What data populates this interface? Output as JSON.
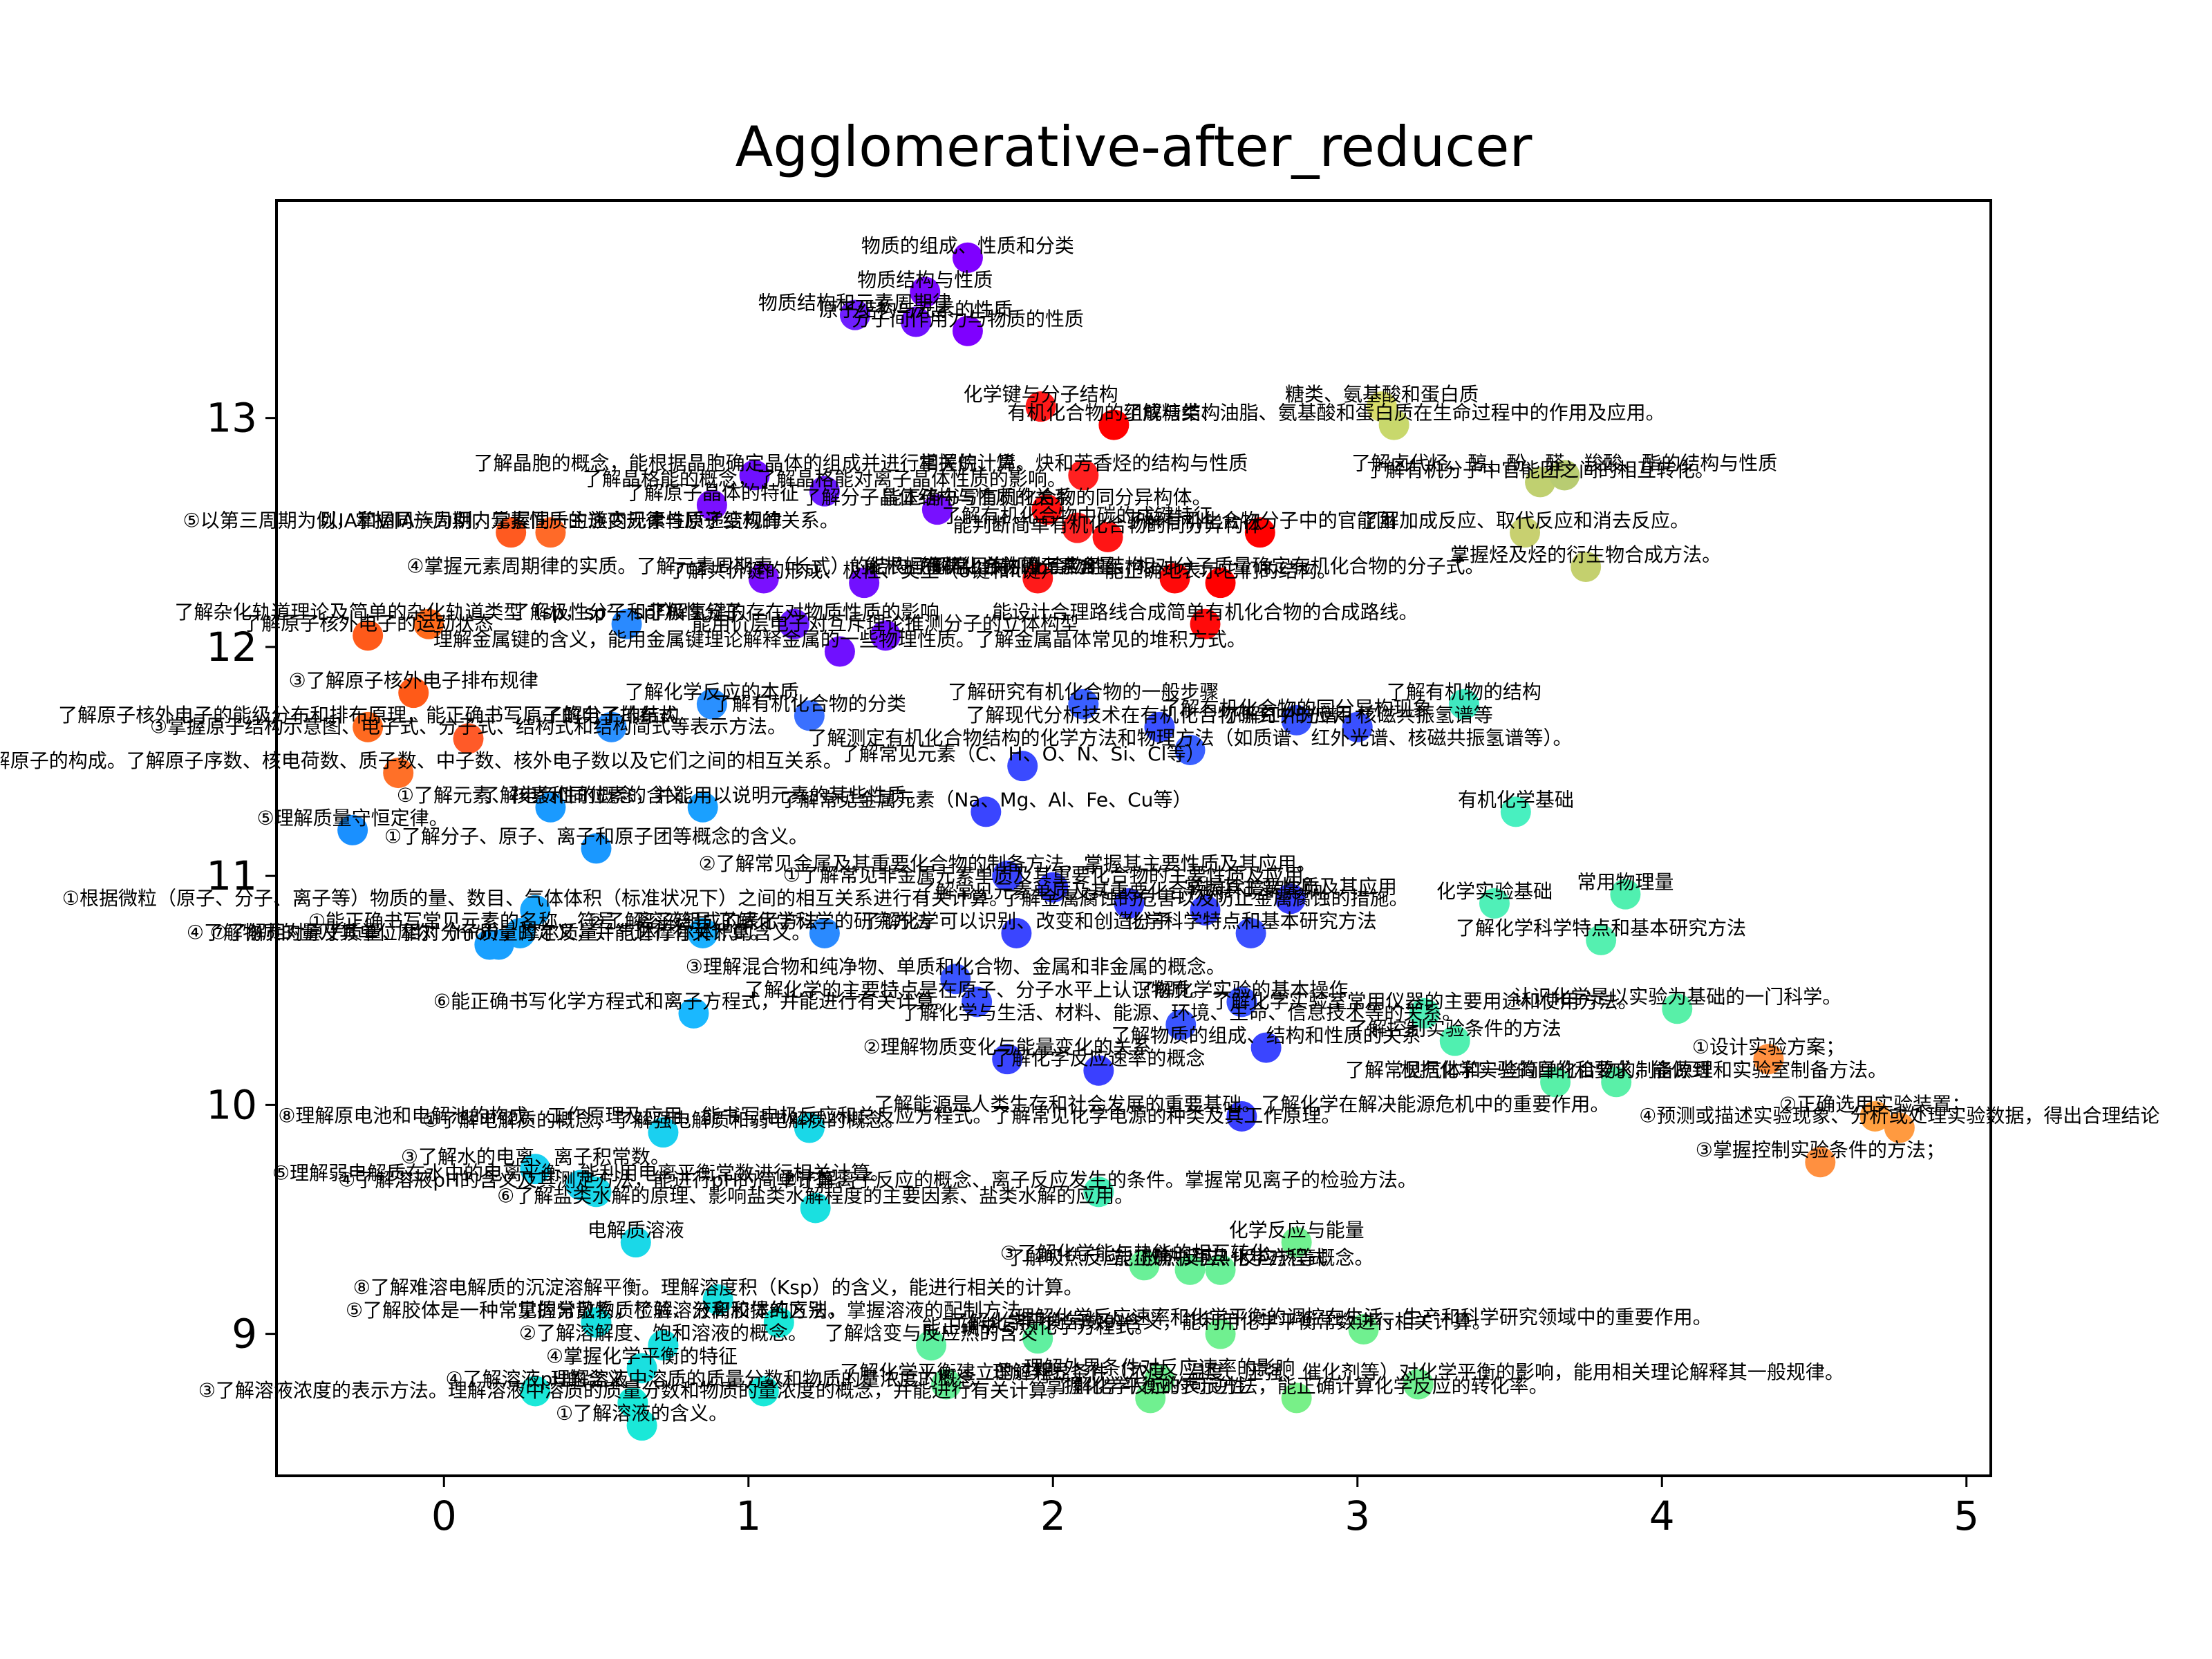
{
  "chart_data": {
    "type": "scatter",
    "title": "Agglomerative-after_reducer",
    "xlabel": "",
    "ylabel": "",
    "xlim": [
      -0.55,
      5.08
    ],
    "ylim": [
      8.38,
      13.95
    ],
    "xticks": [
      0,
      1,
      2,
      3,
      4,
      5
    ],
    "yticks": [
      9,
      10,
      11,
      12,
      13
    ],
    "grid": false,
    "legend": "none",
    "points": [
      {
        "x": 1.72,
        "y": 13.7,
        "color": "#7f00ff",
        "label": "物质的组成、性质和分类"
      },
      {
        "x": 1.58,
        "y": 13.55,
        "color": "#7b08ff",
        "label": "物质结构与性质"
      },
      {
        "x": 1.35,
        "y": 13.45,
        "color": "#6f1fff",
        "label": "物质结构和元素周期律"
      },
      {
        "x": 1.55,
        "y": 13.42,
        "color": "#7010ff",
        "label": "原子结构与元素的性质"
      },
      {
        "x": 1.72,
        "y": 13.38,
        "color": "#7f00ff",
        "label": "分子间作用力与物质的性质"
      },
      {
        "x": 1.96,
        "y": 13.05,
        "color": "#ff1a1a",
        "label": "化学键与分子结构"
      },
      {
        "x": 2.2,
        "y": 12.97,
        "color": "#ff0000",
        "label": "有机化合物的组成与结构"
      },
      {
        "x": 3.08,
        "y": 13.05,
        "color": "#d8dc6a",
        "label": "糖类、氨基酸和蛋白质"
      },
      {
        "x": 3.12,
        "y": 12.97,
        "color": "#c8d86c",
        "label": "了解糖类、油脂、氨基酸和蛋白质在生命过程中的作用及应用。"
      },
      {
        "x": 1.02,
        "y": 12.75,
        "color": "#7010ff",
        "label": "了解晶胞的概念，能根据晶胞确定晶体的组成并进行相关的计算。"
      },
      {
        "x": 2.1,
        "y": 12.75,
        "color": "#ff2020",
        "label": "掌握烷、烯、炔和芳香烃的结构与性质"
      },
      {
        "x": 3.6,
        "y": 12.72,
        "color": "#c0d070",
        "label": "了解有机分子中官能团之间的相互转化。"
      },
      {
        "x": 3.68,
        "y": 12.75,
        "color": "#b8cc72",
        "label": "了解卤代烃、醇、酚、醛、羧酸、酯的结构与性质"
      },
      {
        "x": 1.25,
        "y": 12.68,
        "color": "#6a1aff",
        "label": "了解晶格能的概念，了解晶格能对离子晶体性质的影响。"
      },
      {
        "x": 0.88,
        "y": 12.62,
        "color": "#7a10ff",
        "label": "了解原子晶体的特征"
      },
      {
        "x": 1.62,
        "y": 12.6,
        "color": "#7810ff",
        "label": "了解分子晶体结构与性质的关系"
      },
      {
        "x": 1.98,
        "y": 12.6,
        "color": "#ff1010",
        "label": "能正确书写有机化合物的同分异构体。"
      },
      {
        "x": 2.08,
        "y": 12.52,
        "color": "#ff2525",
        "label": "了解有机化合物中碳的成键特征"
      },
      {
        "x": 2.18,
        "y": 12.48,
        "color": "#ff1515",
        "label": "能判断简单有机化合物的同分异构体"
      },
      {
        "x": 2.68,
        "y": 12.5,
        "color": "#ff0000",
        "label": "了解有机化合物分子中的官能团"
      },
      {
        "x": 3.55,
        "y": 12.5,
        "color": "#c8d070",
        "label": "了解加成反应、取代反应和消去反应。"
      },
      {
        "x": 3.75,
        "y": 12.35,
        "color": "#c4d06e",
        "label": "掌握烃及烃的衍生物合成方法。"
      },
      {
        "x": 0.22,
        "y": 12.5,
        "color": "#ff5a20",
        "label": "⑤以第三周期为例，掌握同一周期内元素性质的递变规律与原子结构的关系。"
      },
      {
        "x": 0.35,
        "y": 12.5,
        "color": "#ff6a28",
        "label": "以IA和VIIA族为例，掌握同一主族内元素性质递变规律"
      },
      {
        "x": 1.05,
        "y": 12.3,
        "color": "#7a10ff",
        "label": "④掌握元素周期律的实质。了解元素周期表（长式）的结构（周期、族）及其应用。"
      },
      {
        "x": 1.38,
        "y": 12.28,
        "color": "#7210ff",
        "label": "了解共价键的形成、极性、类型（σ键和π键）"
      },
      {
        "x": 1.95,
        "y": 12.3,
        "color": "#ff1a1a",
        "label": "了解常见有机化合物的结构。"
      },
      {
        "x": 2.4,
        "y": 12.3,
        "color": "#ff0a0a",
        "label": "能根据有机化合物的元素含量、相对分子质量确定有机化合物的分子式。"
      },
      {
        "x": 2.55,
        "y": 12.28,
        "color": "#ff0000",
        "label": "能正确地表示它们的结构。"
      },
      {
        "x": -0.25,
        "y": 12.05,
        "color": "#ff5a1a",
        "label": "了解原子核外电子的运动状态"
      },
      {
        "x": -0.05,
        "y": 12.1,
        "color": "#ff6a1a",
        "label": "了解杂化轨道理论及简单的杂化轨道类型（sp，sp²，sp³）"
      },
      {
        "x": 0.6,
        "y": 12.1,
        "color": "#2a8aff",
        "label": "了解极性分子和非极性分子"
      },
      {
        "x": 1.15,
        "y": 12.1,
        "color": "#6a1aff",
        "label": "了解氢键的存在对物质性质的影响"
      },
      {
        "x": 1.45,
        "y": 12.05,
        "color": "#7010ff",
        "label": "能用价层电子对互斥理论推测分子的立体构型"
      },
      {
        "x": 2.5,
        "y": 12.1,
        "color": "#ff0a0a",
        "label": "能设计合理路线合成简单有机化合物的合成路线。"
      },
      {
        "x": 1.3,
        "y": 11.98,
        "color": "#7010ff",
        "label": "理解金属键的含义，能用金属键理论解释金属的一些物理性质。了解金属晶体常见的堆积方式。"
      },
      {
        "x": -0.1,
        "y": 11.8,
        "color": "#ff5a18",
        "label": "③了解原子核外电子排布规律"
      },
      {
        "x": -0.25,
        "y": 11.65,
        "color": "#ff6a20",
        "label": "了解原子核外电子的能级分布和排布原理，能正确书写原子的电子排布式"
      },
      {
        "x": 0.08,
        "y": 11.6,
        "color": "#ff5a28",
        "label": "③掌握原子结构示意图、电子式、分子式、结构式和结构简式等表示方法。"
      },
      {
        "x": 0.55,
        "y": 11.65,
        "color": "#2a90ff",
        "label": "了解分子的结构"
      },
      {
        "x": 0.88,
        "y": 11.75,
        "color": "#2a90ff",
        "label": "了解化学反应的本质"
      },
      {
        "x": 1.2,
        "y": 11.7,
        "color": "#3a70ff",
        "label": "了解有机化合物的分类"
      },
      {
        "x": 2.1,
        "y": 11.75,
        "color": "#3a60ff",
        "label": "了解研究有机化合物的一般步骤"
      },
      {
        "x": 2.35,
        "y": 11.65,
        "color": "#3a50ff",
        "label": "了解现代分析技术在有机化合物研究中的应用"
      },
      {
        "x": 2.8,
        "y": 11.68,
        "color": "#3a55ff",
        "label": "了解有机化合物的同分异构现象"
      },
      {
        "x": 3.0,
        "y": 11.65,
        "color": "#3a50ff",
        "label": "了解红外光谱、核磁共振氢谱等"
      },
      {
        "x": 3.35,
        "y": 11.75,
        "color": "#40e8c0",
        "label": "了解有机物的结构"
      },
      {
        "x": 2.45,
        "y": 11.55,
        "color": "#3a60ff",
        "label": "了解测定有机化合物结构的化学方法和物理方法（如质谱、红外光谱、核磁共振氢谱等）。"
      },
      {
        "x": -0.15,
        "y": 11.45,
        "color": "#ff7028",
        "label": "①了解原子的构成。了解原子序数、核电荷数、质子数、中子数、核外电子数以及它们之间的相互关系。"
      },
      {
        "x": 0.35,
        "y": 11.3,
        "color": "#1a9aff",
        "label": "①了解元素、核素和同位素的含义。"
      },
      {
        "x": 0.85,
        "y": 11.3,
        "color": "#1aa0ff",
        "label": "了解电负性的概念，并能用以说明元素的某些性质。"
      },
      {
        "x": 1.9,
        "y": 11.48,
        "color": "#3a4aff",
        "label": "了解常见元素（C、H、O、N、Si、Cl等）"
      },
      {
        "x": 1.78,
        "y": 11.28,
        "color": "#3a45ff",
        "label": "了解常见金属元素（Na、Mg、Al、Fe、Cu等）"
      },
      {
        "x": 3.52,
        "y": 11.28,
        "color": "#48f0c0",
        "label": "有机化学基础"
      },
      {
        "x": -0.3,
        "y": 11.2,
        "color": "#1a90ff",
        "label": "⑤理解质量守恒定律。"
      },
      {
        "x": 0.5,
        "y": 11.12,
        "color": "#1a98ff",
        "label": "①了解分子、原子、离子和原子团等概念的含义。"
      },
      {
        "x": 1.85,
        "y": 11.0,
        "color": "#3a45ff",
        "label": "②了解常见金属及其重要化合物的制备方法，掌握其主要性质及其应用。"
      },
      {
        "x": 2.0,
        "y": 10.95,
        "color": "#3a40ff",
        "label": "①了解常见非金属元素单质及其重要化合物的主要性质及应用。"
      },
      {
        "x": 2.25,
        "y": 10.88,
        "color": "#3a40ff",
        "label": "了解常见元素单质及其重要化合物对环境的影响。"
      },
      {
        "x": 2.5,
        "y": 10.85,
        "color": "#3a45ff",
        "label": "了解金属腐蚀的危害以及防止金属腐蚀的措施。"
      },
      {
        "x": 2.78,
        "y": 10.9,
        "color": "#3a40ff",
        "label": "掌握其主要性质及其应用"
      },
      {
        "x": 3.45,
        "y": 10.88,
        "color": "#50f0b8",
        "label": "化学实验基础"
      },
      {
        "x": 3.88,
        "y": 10.92,
        "color": "#50f0b0",
        "label": "常用物理量"
      },
      {
        "x": 0.3,
        "y": 10.85,
        "color": "#1aa8ff",
        "label": "①根据微粒（原子、分子、离子等）物质的量、数目、气体体积（标准状况下）之间的相互关系进行有关计算。"
      },
      {
        "x": 0.25,
        "y": 10.75,
        "color": "#1aa8ff",
        "label": "①能正确书写常见元素的名称、符号、离子符号。"
      },
      {
        "x": 0.15,
        "y": 10.7,
        "color": "#1aa0ff",
        "label": "⑦了解相对原子质量、相对分子质量的定义，并能进行有关计算。"
      },
      {
        "x": 0.18,
        "y": 10.7,
        "color": "#1aa0ff",
        "label": "④了解物质的量及其单位摩尔（mol），摩尔质量、气体摩尔体积的含义。"
      },
      {
        "x": 0.85,
        "y": 10.75,
        "color": "#1ab0ff",
        "label": "②了解溶液组成的表示方法"
      },
      {
        "x": 1.25,
        "y": 10.75,
        "color": "#2a8aff",
        "label": "了解化学科学的研究方法"
      },
      {
        "x": 1.88,
        "y": 10.75,
        "color": "#3a45ff",
        "label": "了解化学可以识别、改变和创造分子"
      },
      {
        "x": 2.65,
        "y": 10.75,
        "color": "#3a50ff",
        "label": "化学科学特点和基本研究方法"
      },
      {
        "x": 3.8,
        "y": 10.72,
        "color": "#55f0b0",
        "label": "了解化学科学特点和基本研究方法"
      },
      {
        "x": 1.68,
        "y": 10.55,
        "color": "#3a55ff",
        "label": "③理解混合物和纯净物、单质和化合物、金属和非金属的概念。"
      },
      {
        "x": 0.82,
        "y": 10.4,
        "color": "#1ab8ff",
        "label": "⑥能正确书写化学方程式和离子方程式，并能进行有关计算。"
      },
      {
        "x": 1.75,
        "y": 10.45,
        "color": "#3a50ff",
        "label": "了解化学的主要特点是在原子、分子水平上认识物质。"
      },
      {
        "x": 2.42,
        "y": 10.35,
        "color": "#3a55ff",
        "label": "了解化学与生活、材料、能源、环境、生命、信息技术等的关系。"
      },
      {
        "x": 2.62,
        "y": 10.45,
        "color": "#3a55ff",
        "label": "了解化学实验的基本操作"
      },
      {
        "x": 3.22,
        "y": 10.4,
        "color": "#50f0b8",
        "label": "了解化学实验室常用仪器的主要用途和使用方法。"
      },
      {
        "x": 4.05,
        "y": 10.42,
        "color": "#58f0a8",
        "label": "认识化学是以实验为基础的一门科学。"
      },
      {
        "x": 1.85,
        "y": 10.2,
        "color": "#3a45ff",
        "label": "②理解物质变化与能量变化的关系"
      },
      {
        "x": 2.15,
        "y": 10.15,
        "color": "#3a40ff",
        "label": "了解化学反应速率的概念"
      },
      {
        "x": 2.7,
        "y": 10.25,
        "color": "#3a45ff",
        "label": "了解物质的组成、结构和性质的关系"
      },
      {
        "x": 3.32,
        "y": 10.28,
        "color": "#50f0b0",
        "label": "了解控制实验条件的方法"
      },
      {
        "x": 3.65,
        "y": 10.1,
        "color": "#58f0a8",
        "label": "根据化学实验的目的和要求，能做到"
      },
      {
        "x": 3.85,
        "y": 10.1,
        "color": "#5af0a8",
        "label": "了解常见气体和一些简单化合物的制备原理和实验室制备方法。"
      },
      {
        "x": 4.35,
        "y": 10.2,
        "color": "#ff9040",
        "label": "①设计实验方案；"
      },
      {
        "x": 4.7,
        "y": 9.95,
        "color": "#ffa040",
        "label": "②正确选用实验装置；"
      },
      {
        "x": 4.78,
        "y": 9.9,
        "color": "#ff9a40",
        "label": "④预测或描述实验现象、分析或处理实验数据，得出合理结论"
      },
      {
        "x": 4.52,
        "y": 9.75,
        "color": "#ff9040",
        "label": "③掌握控制实验条件的方法；"
      },
      {
        "x": 2.62,
        "y": 9.95,
        "color": "#3a40ff",
        "label": "了解能源是人类生存和社会发展的重要基础。了解化学在解决能源危机中的重要作用。"
      },
      {
        "x": 0.72,
        "y": 9.88,
        "color": "#1ad0f0",
        "label": "①了解电解质的概念，了解强电解质和弱电解质的概念。"
      },
      {
        "x": 1.2,
        "y": 9.9,
        "color": "#1ad8e8",
        "label": "⑧理解原电池和电解池的构成、工作原理及应用，能书写电极反应和总反应方程式。了解常见化学电源的种类及其工作原理。"
      },
      {
        "x": 0.3,
        "y": 9.72,
        "color": "#1ad0f0",
        "label": "③了解水的电离、离子积常数。"
      },
      {
        "x": 0.45,
        "y": 9.65,
        "color": "#1ad0f0",
        "label": "⑤理解弱电解质在水中的电离平衡，能利用电离平衡常数进行相关计算。"
      },
      {
        "x": 0.5,
        "y": 9.62,
        "color": "#1ad8e8",
        "label": "④了解溶液pH的含义及其测定方法，能进行pH的简单计算。"
      },
      {
        "x": 1.22,
        "y": 9.55,
        "color": "#1ae0e0",
        "label": "⑥了解盐类水解的原理、影响盐类水解程度的主要因素、盐类水解的应用。"
      },
      {
        "x": 2.15,
        "y": 9.62,
        "color": "#48f0b8",
        "label": "⑦了解离子反应的概念、离子反应发生的条件。掌握常见离子的检验方法。"
      },
      {
        "x": 0.63,
        "y": 9.4,
        "color": "#1ad8e8",
        "label": "电解质溶液"
      },
      {
        "x": 2.8,
        "y": 9.4,
        "color": "#70f090",
        "label": "化学反应与能量"
      },
      {
        "x": 2.3,
        "y": 9.3,
        "color": "#6af098",
        "label": "③了解化学能与热能的相互转化。"
      },
      {
        "x": 2.45,
        "y": 9.28,
        "color": "#6af098",
        "label": "了解吸热反应、放热反应、反应热等概念。"
      },
      {
        "x": 2.55,
        "y": 9.28,
        "color": "#6af098",
        "label": "能正确书写热化学方程式"
      },
      {
        "x": 0.9,
        "y": 9.15,
        "color": "#1ae0e0",
        "label": "⑧了解难溶电解质的沉淀溶解平衡。理解溶度积（Ksp）的含义，能进行相关的计算。"
      },
      {
        "x": 0.5,
        "y": 9.05,
        "color": "#1ae0e0",
        "label": "⑤了解胶体是一种常见的分散系，了解溶液和胶体的区别。"
      },
      {
        "x": 1.1,
        "y": 9.05,
        "color": "#1ae8d8",
        "label": "掌握常见物质检验、分离和提纯方法，掌握溶液的配制方法。"
      },
      {
        "x": 2.55,
        "y": 9.0,
        "color": "#70f090",
        "label": "了解化学平衡常数的含义，能利用化学平衡常数进行相关计算。"
      },
      {
        "x": 3.02,
        "y": 9.02,
        "color": "#70f090",
        "label": "理解化学反应速率和化学平衡的调控在生活、生产和科学研究领域中的重要作用。"
      },
      {
        "x": 0.72,
        "y": 8.95,
        "color": "#1ae0e0",
        "label": "②了解溶解度、饱和溶液的概念。"
      },
      {
        "x": 1.6,
        "y": 8.95,
        "color": "#60f0a0",
        "label": "了解焓变与反应热的含义"
      },
      {
        "x": 1.95,
        "y": 8.98,
        "color": "#60f0a0",
        "label": "能正确书写热化学方程式。"
      },
      {
        "x": 0.65,
        "y": 8.85,
        "color": "#1ae0e0",
        "label": "④掌握化学平衡的特征"
      },
      {
        "x": 0.3,
        "y": 8.75,
        "color": "#1ae8d8",
        "label": "④了解溶液pH的含义"
      },
      {
        "x": 1.05,
        "y": 8.75,
        "color": "#1ae8d8",
        "label": "理解溶液中溶质的质量分数和物质的量浓度的概念"
      },
      {
        "x": 1.65,
        "y": 8.78,
        "color": "#66f098",
        "label": "了解化学平衡建立的过程"
      },
      {
        "x": 2.35,
        "y": 8.8,
        "color": "#70f090",
        "label": "理解外界条件对反应速率的影响"
      },
      {
        "x": 3.2,
        "y": 8.78,
        "color": "#70f090",
        "label": "理解外界条件（浓度、温度、压强、催化剂等）对化学平衡的影响，能用相关理论解释其一般规律。"
      },
      {
        "x": 0.62,
        "y": 8.7,
        "color": "#1ae8d8",
        "label": "③了解溶液浓度的表示方法。理解溶液中溶质的质量分数和物质的量浓度的概念，并能进行有关计算。"
      },
      {
        "x": 2.32,
        "y": 8.72,
        "color": "#70f090",
        "label": "了解化学反应的可逆性"
      },
      {
        "x": 2.8,
        "y": 8.72,
        "color": "#78f088",
        "label": "掌握化学平衡的表示方法，能正确计算化学反应的转化率。"
      },
      {
        "x": 0.65,
        "y": 8.6,
        "color": "#1ae8d8",
        "label": "①了解溶液的含义。"
      }
    ]
  }
}
